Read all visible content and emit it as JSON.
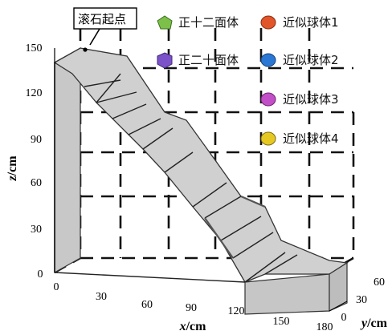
{
  "start_label": "滚石起点",
  "axes": {
    "z": {
      "name": "z",
      "unit": "/cm",
      "ticks": [
        "0",
        "30",
        "60",
        "90",
        "120",
        "150"
      ]
    },
    "x": {
      "name": "x",
      "unit": "/cm",
      "ticks": [
        "0",
        "30",
        "60",
        "90",
        "120",
        "150",
        "180"
      ]
    },
    "y": {
      "name": "y",
      "unit": "/cm",
      "ticks": [
        "0",
        "30",
        "60"
      ]
    }
  },
  "legend": [
    {
      "label": "正十二面体",
      "color": "#7cc04a",
      "icon": "dodecahedron-icon"
    },
    {
      "label": "近似球体1",
      "color": "#e0562a",
      "icon": "sphere-icon"
    },
    {
      "label": "正二十面体",
      "color": "#7b52c8",
      "icon": "icosahedron-icon"
    },
    {
      "label": "近似球体2",
      "color": "#2a78d4",
      "icon": "sphere-icon"
    },
    {
      "label": "近似球体3",
      "color": "#c34fc8",
      "icon": "sphere-icon"
    },
    {
      "label": "近似球体4",
      "color": "#e6c822",
      "icon": "sphere-icon"
    }
  ],
  "colors": {
    "slope_fill": "#cfcfcf",
    "slope_edge": "#333333"
  }
}
